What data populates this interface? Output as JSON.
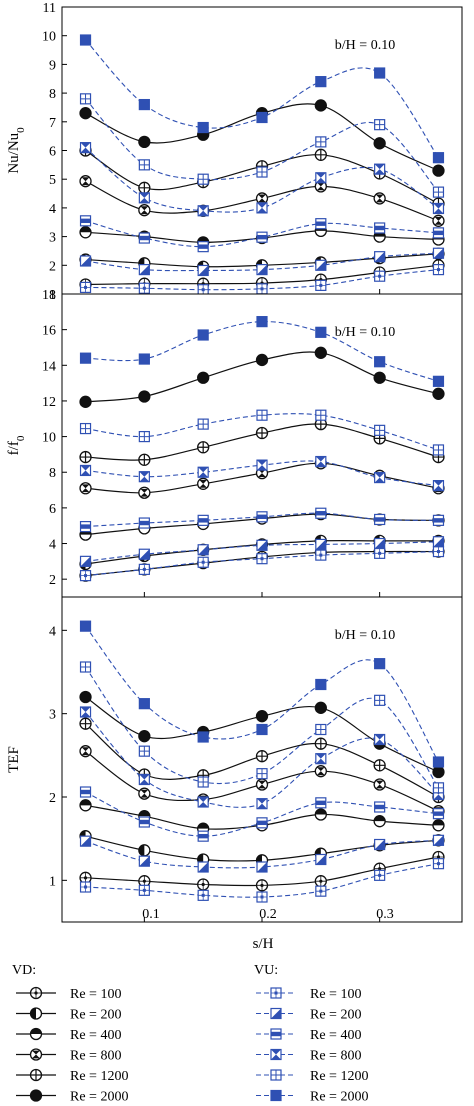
{
  "figure": {
    "xlabel": "s/H",
    "xticks": [
      "0.1",
      "0.2",
      "0.3"
    ],
    "legend": {
      "vd_title": "VD:",
      "vu_title": "VU:",
      "entries": [
        "Re = 100",
        "Re = 200",
        "Re = 400",
        "Re = 800",
        "Re = 1200",
        "Re = 2000"
      ]
    }
  },
  "chart_data": [
    {
      "type": "line",
      "ylabel": "Nu/Nu0",
      "annotation": "b/H = 0.10",
      "xlim": [
        0.03,
        0.37
      ],
      "ylim": [
        1,
        11
      ],
      "yticks": [
        1,
        2,
        3,
        4,
        5,
        6,
        7,
        8,
        9,
        10,
        11
      ],
      "x": [
        0.05,
        0.1,
        0.15,
        0.2,
        0.25,
        0.3,
        0.35
      ],
      "series": [
        {
          "name": "VD Re = 100",
          "group": "VD",
          "marker": "circle-plus",
          "values": [
            1.33,
            1.36,
            1.36,
            1.38,
            1.5,
            1.75,
            2.0
          ]
        },
        {
          "name": "VD Re = 200",
          "group": "VD",
          "marker": "circle-left-half",
          "values": [
            2.2,
            2.07,
            1.95,
            2.0,
            2.1,
            2.25,
            2.4
          ]
        },
        {
          "name": "VD Re = 400",
          "group": "VD",
          "marker": "circle-top-half",
          "values": [
            3.15,
            3.0,
            2.8,
            2.95,
            3.2,
            3.0,
            2.9
          ]
        },
        {
          "name": "VD Re = 800",
          "group": "VD",
          "marker": "circle-bowtie",
          "values": [
            4.93,
            3.92,
            3.9,
            4.33,
            4.75,
            4.33,
            3.55
          ]
        },
        {
          "name": "VD Re = 1200",
          "group": "VD",
          "marker": "circle-cross",
          "values": [
            6.0,
            4.7,
            4.9,
            5.45,
            5.85,
            5.2,
            4.15
          ]
        },
        {
          "name": "VD Re = 2000",
          "group": "VD",
          "marker": "circle-filled",
          "values": [
            7.3,
            6.3,
            6.55,
            7.3,
            7.57,
            6.25,
            5.3
          ]
        },
        {
          "name": "VU Re = 100",
          "group": "VU",
          "marker": "square-plus",
          "values": [
            1.23,
            1.2,
            1.15,
            1.18,
            1.3,
            1.62,
            1.85
          ]
        },
        {
          "name": "VU Re = 200",
          "group": "VU",
          "marker": "square-half",
          "values": [
            2.15,
            1.85,
            1.82,
            1.85,
            2.0,
            2.3,
            2.42
          ]
        },
        {
          "name": "VU Re = 400",
          "group": "VU",
          "marker": "square-bar",
          "values": [
            3.55,
            2.95,
            2.65,
            2.98,
            3.45,
            3.3,
            3.13
          ]
        },
        {
          "name": "VU Re = 800",
          "group": "VU",
          "marker": "square-bowtie",
          "values": [
            6.1,
            4.35,
            3.9,
            4.0,
            5.05,
            5.35,
            3.98
          ]
        },
        {
          "name": "VU Re = 1200",
          "group": "VU",
          "marker": "square-grid",
          "values": [
            7.8,
            5.5,
            5.0,
            5.25,
            6.3,
            6.9,
            4.55
          ]
        },
        {
          "name": "VU Re = 2000",
          "group": "VU",
          "marker": "square-filled",
          "values": [
            9.85,
            7.6,
            6.8,
            7.15,
            8.4,
            8.7,
            5.75
          ]
        }
      ]
    },
    {
      "type": "line",
      "ylabel": "f/f0",
      "annotation": "b/H = 0.10",
      "xlim": [
        0.03,
        0.37
      ],
      "ylim": [
        1,
        18
      ],
      "yticks": [
        2,
        4,
        6,
        8,
        10,
        12,
        14,
        16,
        18
      ],
      "x": [
        0.05,
        0.1,
        0.15,
        0.2,
        0.25,
        0.3,
        0.35
      ],
      "series": [
        {
          "name": "VD Re = 100",
          "group": "VD",
          "marker": "circle-plus",
          "values": [
            2.2,
            2.55,
            2.9,
            3.25,
            3.5,
            3.55,
            3.55
          ]
        },
        {
          "name": "VD Re = 200",
          "group": "VD",
          "marker": "circle-left-half",
          "values": [
            2.85,
            3.3,
            3.65,
            3.95,
            4.15,
            4.15,
            4.15
          ]
        },
        {
          "name": "VD Re = 400",
          "group": "VD",
          "marker": "circle-top-half",
          "values": [
            4.5,
            4.85,
            5.1,
            5.4,
            5.65,
            5.35,
            5.3
          ]
        },
        {
          "name": "VD Re = 800",
          "group": "VD",
          "marker": "circle-bowtie",
          "values": [
            7.1,
            6.85,
            7.35,
            7.95,
            8.5,
            7.8,
            7.1
          ]
        },
        {
          "name": "VD Re = 1200",
          "group": "VD",
          "marker": "circle-cross",
          "values": [
            8.85,
            8.7,
            9.4,
            10.2,
            10.7,
            9.9,
            8.85
          ]
        },
        {
          "name": "VD Re = 2000",
          "group": "VD",
          "marker": "circle-filled",
          "values": [
            11.95,
            12.25,
            13.3,
            14.3,
            14.7,
            13.3,
            12.4
          ]
        },
        {
          "name": "VU Re = 100",
          "group": "VU",
          "marker": "square-plus",
          "values": [
            2.2,
            2.55,
            2.95,
            3.15,
            3.35,
            3.45,
            3.55
          ]
        },
        {
          "name": "VU Re = 200",
          "group": "VU",
          "marker": "square-half",
          "values": [
            3.0,
            3.4,
            3.65,
            3.9,
            3.95,
            4.0,
            4.1
          ]
        },
        {
          "name": "VU Re = 400",
          "group": "VU",
          "marker": "square-bar",
          "values": [
            4.95,
            5.15,
            5.3,
            5.5,
            5.7,
            5.35,
            5.3
          ]
        },
        {
          "name": "VU Re = 800",
          "group": "VU",
          "marker": "square-bowtie",
          "values": [
            8.1,
            7.75,
            8.0,
            8.4,
            8.6,
            7.7,
            7.25
          ]
        },
        {
          "name": "VU Re = 1200",
          "group": "VU",
          "marker": "square-grid",
          "values": [
            10.45,
            10.0,
            10.7,
            11.2,
            11.2,
            10.35,
            9.25
          ]
        },
        {
          "name": "VU Re = 2000",
          "group": "VU",
          "marker": "square-filled",
          "values": [
            14.4,
            14.35,
            15.7,
            16.45,
            15.85,
            14.2,
            13.1
          ]
        }
      ]
    },
    {
      "type": "line",
      "ylabel": "TEF",
      "annotation": "b/H = 0.10",
      "xlim": [
        0.03,
        0.37
      ],
      "ylim": [
        0.5,
        4.4
      ],
      "yticks": [
        1,
        2,
        3,
        4
      ],
      "x": [
        0.05,
        0.1,
        0.15,
        0.2,
        0.25,
        0.3,
        0.35
      ],
      "series": [
        {
          "name": "VD Re = 100",
          "group": "VD",
          "marker": "circle-plus",
          "values": [
            1.03,
            0.99,
            0.95,
            0.94,
            0.99,
            1.14,
            1.28
          ]
        },
        {
          "name": "VD Re = 200",
          "group": "VD",
          "marker": "circle-left-half",
          "values": [
            1.53,
            1.36,
            1.25,
            1.24,
            1.32,
            1.42,
            1.48
          ]
        },
        {
          "name": "VD Re = 400",
          "group": "VD",
          "marker": "circle-top-half",
          "values": [
            1.9,
            1.77,
            1.62,
            1.66,
            1.79,
            1.71,
            1.66
          ]
        },
        {
          "name": "VD Re = 800",
          "group": "VD",
          "marker": "circle-bowtie",
          "values": [
            2.55,
            2.04,
            1.97,
            2.15,
            2.31,
            2.15,
            1.83
          ]
        },
        {
          "name": "VD Re = 1200",
          "group": "VD",
          "marker": "circle-cross",
          "values": [
            2.88,
            2.27,
            2.26,
            2.49,
            2.64,
            2.38,
            2.0
          ]
        },
        {
          "name": "VD Re = 2000",
          "group": "VD",
          "marker": "circle-filled",
          "values": [
            3.2,
            2.73,
            2.78,
            2.97,
            3.07,
            2.64,
            2.3
          ]
        },
        {
          "name": "VU Re = 100",
          "group": "VU",
          "marker": "square-plus",
          "values": [
            0.92,
            0.88,
            0.82,
            0.8,
            0.87,
            1.06,
            1.2
          ]
        },
        {
          "name": "VU Re = 200",
          "group": "VU",
          "marker": "square-half",
          "values": [
            1.47,
            1.23,
            1.16,
            1.16,
            1.25,
            1.43,
            1.48
          ]
        },
        {
          "name": "VU Re = 400",
          "group": "VU",
          "marker": "square-bar",
          "values": [
            2.06,
            1.7,
            1.53,
            1.69,
            1.93,
            1.88,
            1.8
          ]
        },
        {
          "name": "VU Re = 800",
          "group": "VU",
          "marker": "square-bowtie",
          "values": [
            3.02,
            2.21,
            1.94,
            1.92,
            2.46,
            2.69,
            2.03
          ]
        },
        {
          "name": "VU Re = 1200",
          "group": "VU",
          "marker": "square-grid",
          "values": [
            3.56,
            2.55,
            2.18,
            2.28,
            2.81,
            3.16,
            2.11
          ]
        },
        {
          "name": "VU Re = 2000",
          "group": "VU",
          "marker": "square-filled",
          "values": [
            4.05,
            3.12,
            2.72,
            2.81,
            3.35,
            3.6,
            2.42
          ]
        }
      ]
    }
  ]
}
